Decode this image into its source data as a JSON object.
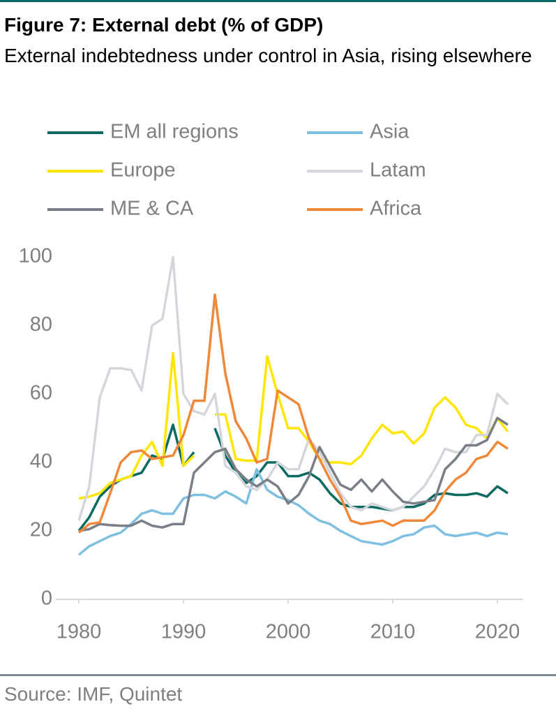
{
  "chart_data": {
    "type": "line",
    "title": "Figure 7: External debt (% of GDP)",
    "subtitle": "External indebtedness under control in Asia, rising elsewhere",
    "source": "Source: IMF, Quintet",
    "x": [
      1980,
      1981,
      1982,
      1983,
      1984,
      1985,
      1986,
      1987,
      1988,
      1989,
      1990,
      1991,
      1992,
      1993,
      1994,
      1995,
      1996,
      1997,
      1998,
      1999,
      2000,
      2001,
      2002,
      2003,
      2004,
      2005,
      2006,
      2007,
      2008,
      2009,
      2010,
      2011,
      2012,
      2013,
      2014,
      2015,
      2016,
      2017,
      2018,
      2019,
      2020,
      2021
    ],
    "xlim": [
      1980,
      2021
    ],
    "xticks": [
      1980,
      1990,
      2000,
      2010,
      2020
    ],
    "ylim": [
      0,
      100
    ],
    "yticks": [
      0,
      20,
      40,
      60,
      80,
      100
    ],
    "grid": false,
    "series": [
      {
        "name": "EM all regions",
        "color": "#0b6b63",
        "values": [
          20,
          24,
          30,
          33,
          35,
          36,
          37,
          42,
          41,
          51,
          39,
          43,
          null,
          50,
          42,
          37,
          34,
          36,
          40,
          40,
          36,
          36,
          37,
          35,
          31,
          28,
          27,
          27,
          27,
          26.5,
          26,
          27,
          27,
          28,
          30.5,
          31,
          30.5,
          30.5,
          31,
          30,
          33,
          31
        ]
      },
      {
        "name": "Asia",
        "color": "#7fbfdf",
        "values": [
          13,
          15.5,
          17,
          18.5,
          19.5,
          22,
          25,
          26,
          25,
          25,
          29.5,
          30.5,
          30.5,
          29.5,
          31.5,
          30,
          28,
          38,
          32,
          30,
          29,
          27.5,
          25,
          23,
          22,
          20,
          18.5,
          17,
          16.5,
          16,
          17,
          18.5,
          19,
          21,
          21.5,
          19,
          18.5,
          19,
          19.5,
          18.5,
          19.5,
          19
        ]
      },
      {
        "name": "Europe",
        "color": "#ffe600",
        "values": [
          29.5,
          30,
          31,
          34,
          35,
          36,
          42,
          46,
          39,
          72,
          39,
          42,
          null,
          54,
          54,
          41,
          40.5,
          40.5,
          71,
          60,
          50,
          50,
          46,
          41,
          40,
          40,
          39.5,
          42,
          47,
          51,
          48.5,
          49,
          45.5,
          48.5,
          56,
          59,
          56,
          51,
          50,
          47,
          53,
          49
        ]
      },
      {
        "name": "Latam",
        "color": "#d3d7dc",
        "values": [
          23,
          33,
          59,
          67.5,
          67.5,
          67,
          61,
          80,
          82,
          100,
          60,
          55,
          54,
          60,
          39,
          37,
          33,
          32,
          35,
          40,
          38,
          38,
          47,
          43,
          37,
          31,
          27,
          26,
          28,
          27,
          26,
          27,
          30,
          33,
          38,
          44,
          43,
          43,
          48,
          48,
          60,
          57
        ]
      },
      {
        "name": "ME & CA",
        "color": "#7a7f87",
        "values": [
          20,
          20.5,
          22,
          21.7,
          21.5,
          21.5,
          23,
          21.5,
          21,
          22,
          22,
          37,
          40,
          43,
          44,
          38,
          35,
          33,
          35,
          33,
          28,
          30.5,
          36,
          44.5,
          39,
          33.5,
          32,
          35,
          31.5,
          35,
          31.5,
          28.5,
          28,
          28.5,
          29,
          38,
          41,
          45,
          45,
          46.5,
          53,
          51
        ]
      },
      {
        "name": "Africa",
        "color": "#f0883a",
        "values": [
          19.5,
          22,
          22.5,
          31,
          40,
          43,
          43.5,
          41,
          41.5,
          42,
          48,
          58,
          58,
          89,
          66,
          52,
          47,
          40,
          41,
          61,
          59,
          57,
          47,
          41,
          35,
          30,
          23,
          22,
          22.5,
          23,
          21.5,
          23,
          23,
          23,
          26,
          31.5,
          35,
          37,
          41,
          42,
          46,
          44
        ]
      }
    ]
  }
}
